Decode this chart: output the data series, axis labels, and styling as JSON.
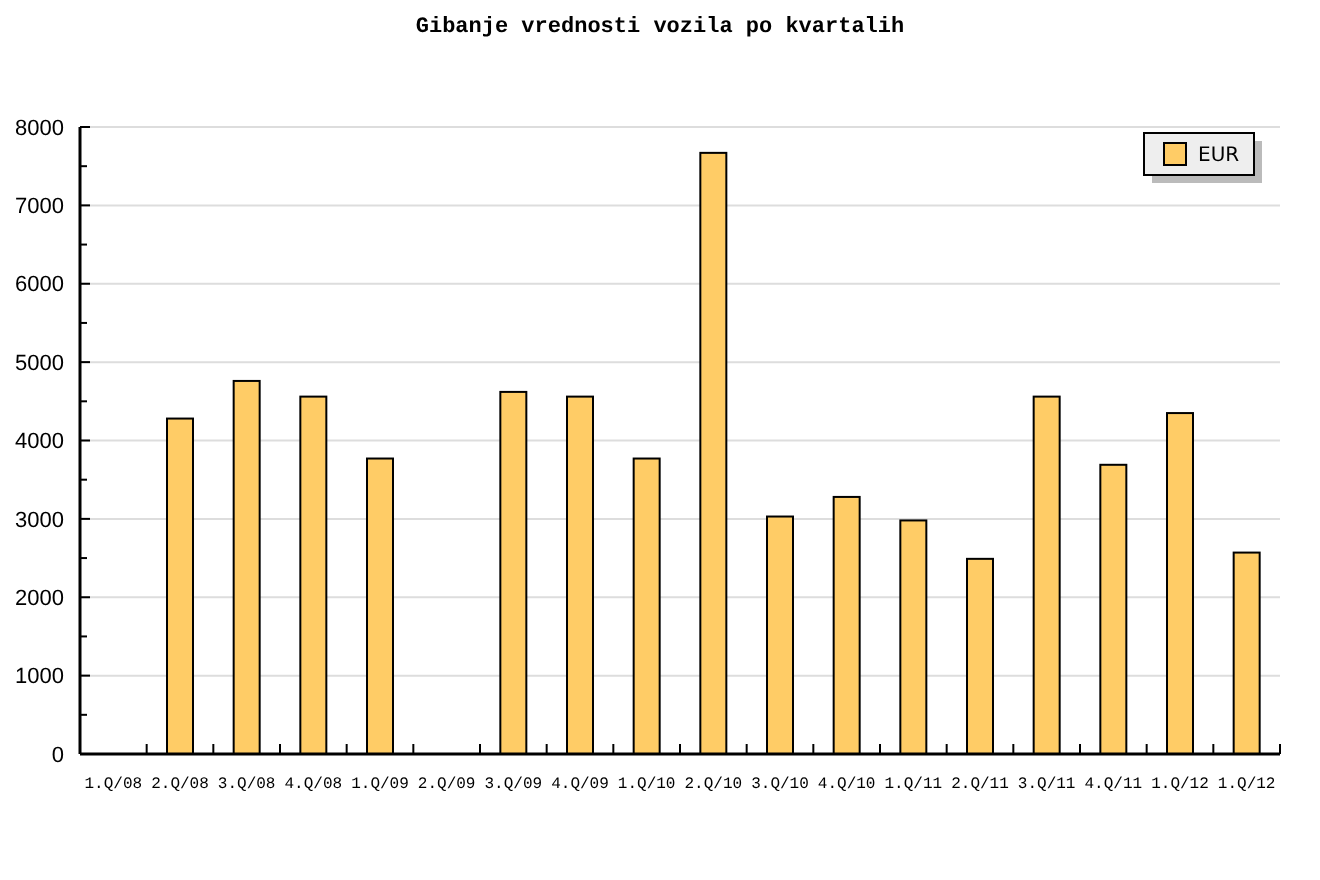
{
  "chart_data": {
    "type": "bar",
    "title": "Gibanje vrednosti vozila po kvartalih",
    "categories": [
      "1.Q/08",
      "2.Q/08",
      "3.Q/08",
      "4.Q/08",
      "1.Q/09",
      "2.Q/09",
      "3.Q/09",
      "4.Q/09",
      "1.Q/10",
      "2.Q/10",
      "3.Q/10",
      "4.Q/10",
      "1.Q/11",
      "2.Q/11",
      "3.Q/11",
      "4.Q/11",
      "1.Q/12",
      "1.Q/12"
    ],
    "series": [
      {
        "name": "EUR",
        "color": "#ffcc66",
        "values": [
          null,
          4280,
          4760,
          4560,
          3770,
          null,
          4620,
          4560,
          3770,
          7670,
          3030,
          3280,
          2980,
          2490,
          4560,
          3690,
          4350,
          2570
        ]
      }
    ],
    "ylim": [
      0,
      8000
    ],
    "yticks": [
      0,
      {
        "value": 500,
        "label": null
      },
      1000,
      {
        "value": 1500,
        "label": null
      },
      2000,
      {
        "value": 2500,
        "label": null
      },
      3000,
      {
        "value": 3500,
        "label": null
      },
      4000,
      {
        "value": 4500,
        "label": null
      },
      5000,
      {
        "value": 5500,
        "label": null
      },
      6000,
      {
        "value": 6500,
        "label": null
      },
      7000,
      {
        "value": 7500,
        "label": null
      },
      8000
    ],
    "grid": "y",
    "legend": "top right"
  }
}
